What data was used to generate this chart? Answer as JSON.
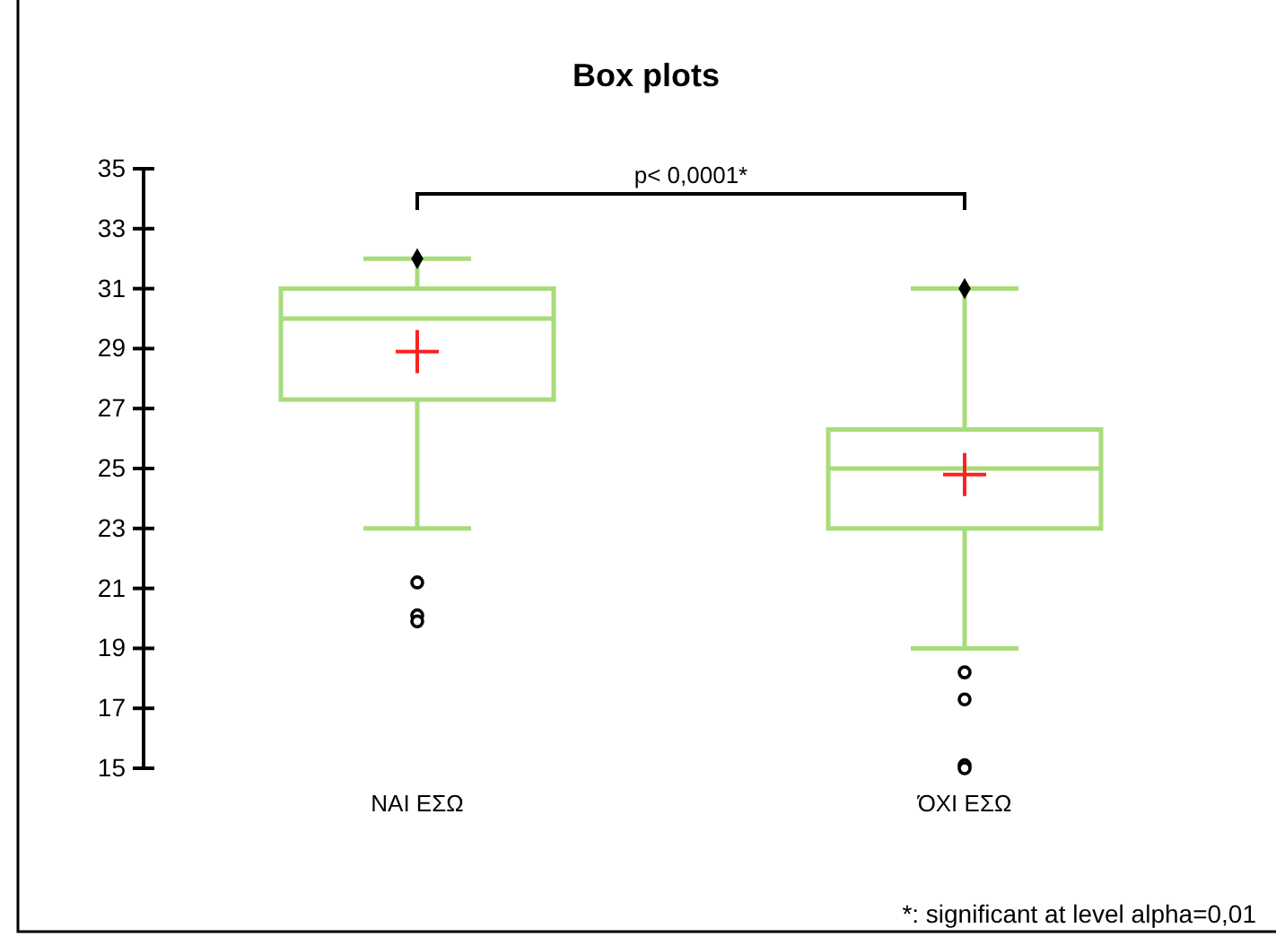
{
  "chart_data": {
    "type": "box",
    "title": "Box plots",
    "categories": [
      "ΝΑΙ ΕΣΩ",
      "ΌΧΙ ΕΣΩ"
    ],
    "boxes": [
      {
        "low": 23,
        "q1": 27.3,
        "median": 30,
        "q3": 31,
        "high": 32,
        "mean": 28.9,
        "outliers": [
          21.2,
          20.1,
          19.9
        ]
      },
      {
        "low": 19,
        "q1": 23,
        "median": 25,
        "q3": 26.3,
        "high": 31,
        "mean": 24.8,
        "outliers": [
          18.2,
          17.3,
          15.1,
          15
        ]
      }
    ],
    "color": "#a8dc7a",
    "series": [
      {
        "type": "scatter",
        "x": [
          "ΝΑΙ ΕΣΩ",
          "ΌΧΙ ΕΣΩ"
        ],
        "values": [
          32,
          31
        ],
        "color": "#000000",
        "marker": "diamond"
      }
    ],
    "ylim": [
      15,
      35
    ],
    "yticks": [
      15,
      17,
      19,
      21,
      23,
      25,
      27,
      29,
      31,
      33,
      35
    ],
    "grid": false,
    "annotations": [
      "p< 0,0001*",
      "*: significant at level alpha=0,01"
    ]
  }
}
